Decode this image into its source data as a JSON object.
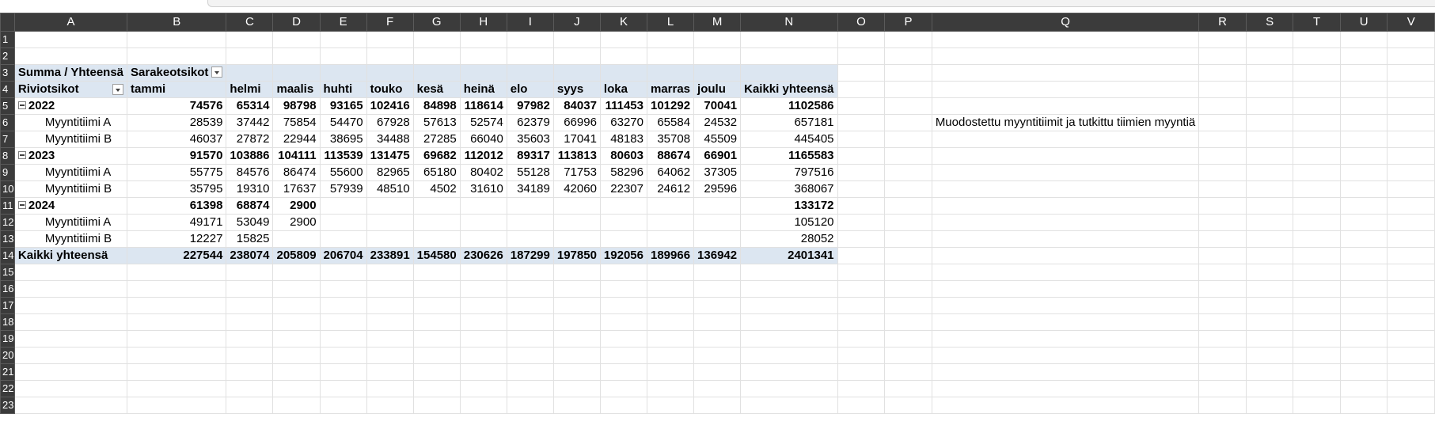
{
  "columns": [
    "A",
    "B",
    "C",
    "D",
    "E",
    "F",
    "G",
    "H",
    "I",
    "J",
    "K",
    "L",
    "M",
    "N",
    "O",
    "P",
    "Q",
    "R",
    "S",
    "T",
    "U",
    "V"
  ],
  "pivot": {
    "header_label": "Summa  / Yhteensä",
    "column_labels_field": "Sarakeotsikot",
    "row_labels_field": "Riviotsikot",
    "months": [
      "tammi",
      "helmi",
      "maalis",
      "huhti",
      "touko",
      "kesä",
      "heinä",
      "elo",
      "syys",
      "loka",
      "marras",
      "joulu"
    ],
    "grand_total_label": "Kaikki yhteensä",
    "groups": [
      {
        "year": "2022",
        "values": [
          "74576",
          "65314",
          "98798",
          "93165",
          "102416",
          "84898",
          "118614",
          "97982",
          "84037",
          "111453",
          "101292",
          "70041"
        ],
        "total": "1102586",
        "teams": [
          {
            "name": "Myyntitiimi A",
            "values": [
              "28539",
              "37442",
              "75854",
              "54470",
              "67928",
              "57613",
              "52574",
              "62379",
              "66996",
              "63270",
              "65584",
              "24532"
            ],
            "total": "657181"
          },
          {
            "name": "Myyntitiimi B",
            "values": [
              "46037",
              "27872",
              "22944",
              "38695",
              "34488",
              "27285",
              "66040",
              "35603",
              "17041",
              "48183",
              "35708",
              "45509"
            ],
            "total": "445405"
          }
        ]
      },
      {
        "year": "2023",
        "values": [
          "91570",
          "103886",
          "104111",
          "113539",
          "131475",
          "69682",
          "112012",
          "89317",
          "113813",
          "80603",
          "88674",
          "66901"
        ],
        "total": "1165583",
        "teams": [
          {
            "name": "Myyntitiimi A",
            "values": [
              "55775",
              "84576",
              "86474",
              "55600",
              "82965",
              "65180",
              "80402",
              "55128",
              "71753",
              "58296",
              "64062",
              "37305"
            ],
            "total": "797516"
          },
          {
            "name": "Myyntitiimi B",
            "values": [
              "35795",
              "19310",
              "17637",
              "57939",
              "48510",
              "4502",
              "31610",
              "34189",
              "42060",
              "22307",
              "24612",
              "29596"
            ],
            "total": "368067"
          }
        ]
      },
      {
        "year": "2024",
        "values": [
          "61398",
          "68874",
          "2900",
          "",
          "",
          "",
          "",
          "",
          "",
          "",
          "",
          ""
        ],
        "total": "133172",
        "teams": [
          {
            "name": "Myyntitiimi A",
            "values": [
              "49171",
              "53049",
              "2900",
              "",
              "",
              "",
              "",
              "",
              "",
              "",
              "",
              ""
            ],
            "total": "105120"
          },
          {
            "name": "Myyntitiimi B",
            "values": [
              "12227",
              "15825",
              "",
              "",
              "",
              "",
              "",
              "",
              "",
              "",
              "",
              ""
            ],
            "total": "28052"
          }
        ]
      }
    ],
    "grand_total_values": [
      "227544",
      "238074",
      "205809",
      "206704",
      "233891",
      "154580",
      "230626",
      "187299",
      "197850",
      "192056",
      "189966",
      "136942"
    ],
    "grand_total": "2401341"
  },
  "note": "Muodostettu myyntitiimit ja tutkittu tiimien myyntiä",
  "row_numbers": [
    "1",
    "2",
    "3",
    "4",
    "5",
    "6",
    "7",
    "8",
    "9",
    "10",
    "11",
    "12",
    "13",
    "14",
    "15",
    "16",
    "17",
    "18",
    "19",
    "20",
    "21",
    "22",
    "23"
  ]
}
